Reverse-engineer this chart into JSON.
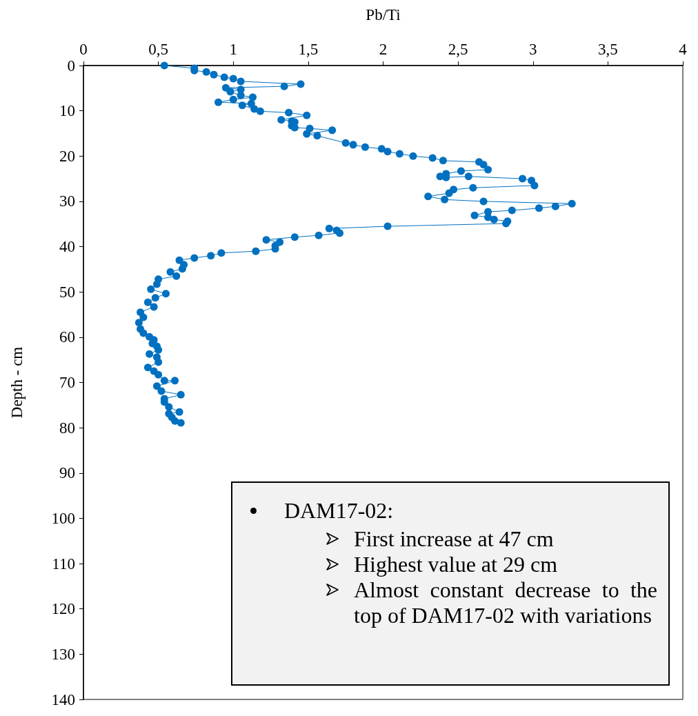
{
  "chart_data": {
    "type": "line",
    "xlabel": "Pb/Ti",
    "ylabel": "Depth - cm",
    "x": [
      0.54,
      0.74,
      0.74,
      0.82,
      0.87,
      0.94,
      1.0,
      1.05,
      1.45,
      1.34,
      0.95,
      1.05,
      0.98,
      1.05,
      1.13,
      1.0,
      0.9,
      1.12,
      1.06,
      1.14,
      1.18,
      1.37,
      1.49,
      1.32,
      1.39,
      1.41,
      1.39,
      1.41,
      1.51,
      1.66,
      1.49,
      1.56,
      1.75,
      1.8,
      1.88,
      1.99,
      2.03,
      2.11,
      2.2,
      2.33,
      2.4,
      2.64,
      2.67,
      2.7,
      2.52,
      2.42,
      2.38,
      2.42,
      2.57,
      2.93,
      2.99,
      3.01,
      2.6,
      2.47,
      2.44,
      2.3,
      2.41,
      2.67,
      3.26,
      3.15,
      3.04,
      2.86,
      2.7,
      2.61,
      2.7,
      2.74,
      2.83,
      2.82,
      2.03,
      1.64,
      1.69,
      1.71,
      1.57,
      1.41,
      1.22,
      1.31,
      1.28,
      1.28,
      1.15,
      0.92,
      0.85,
      0.74,
      0.64,
      0.67,
      0.66,
      0.58,
      0.62,
      0.5,
      0.49,
      0.45,
      0.55,
      0.48,
      0.43,
      0.47,
      0.38,
      0.4,
      0.37,
      0.38,
      0.4,
      0.44,
      0.47,
      0.46,
      0.49,
      0.5,
      0.44,
      0.49,
      0.5,
      0.43,
      0.47,
      0.5,
      0.54,
      0.61,
      0.49,
      0.52,
      0.65,
      0.54,
      0.54,
      0.57,
      0.64,
      0.57,
      0.59,
      0.61,
      0.65
    ],
    "values": [
      0,
      0.6,
      1.1,
      1.4,
      2.0,
      2.6,
      2.9,
      3.5,
      4.1,
      4.6,
      4.9,
      5.3,
      5.8,
      6.6,
      7.0,
      7.5,
      8.1,
      8.4,
      8.8,
      9.6,
      10.1,
      10.4,
      11.0,
      12.0,
      12.3,
      12.5,
      13.3,
      13.7,
      13.9,
      14.3,
      15.1,
      15.5,
      17.1,
      17.5,
      18.0,
      18.4,
      19.0,
      19.5,
      20.0,
      20.4,
      21.0,
      21.3,
      21.9,
      23.0,
      23.3,
      23.9,
      24.5,
      24.7,
      24.5,
      25.0,
      25.4,
      26.5,
      27.0,
      27.4,
      28.2,
      28.9,
      29.6,
      30.0,
      30.5,
      31.1,
      31.5,
      32.0,
      32.3,
      33.1,
      33.5,
      34.0,
      34.4,
      34.9,
      35.5,
      36.0,
      36.4,
      37.0,
      37.5,
      37.9,
      38.5,
      39.0,
      39.8,
      40.5,
      41.0,
      41.4,
      42.0,
      42.5,
      43.0,
      44.0,
      44.9,
      45.6,
      46.5,
      47.2,
      48.3,
      49.4,
      50.4,
      51.3,
      52.3,
      53.3,
      54.5,
      55.6,
      56.8,
      58.2,
      59.1,
      59.9,
      60.6,
      61.4,
      62.0,
      62.8,
      63.7,
      64.4,
      65.5,
      66.7,
      67.5,
      68.3,
      69.6,
      69.6,
      70.8,
      71.9,
      72.7,
      73.6,
      74.3,
      75.4,
      76.5,
      76.9,
      77.7,
      78.5,
      78.9
    ],
    "color": "#0070c0",
    "marker": "circle",
    "line_style": "solid",
    "grid": false,
    "xlim": [
      0,
      4
    ],
    "xticks": [
      0,
      {
        "value": 0.5,
        "label": "0,5"
      },
      1,
      {
        "value": 1.5,
        "label": "1,5"
      },
      2,
      {
        "value": 2.5,
        "label": "2,5"
      },
      3,
      {
        "value": 3.5,
        "label": "3,5"
      },
      4
    ],
    "ylim": [
      140,
      0
    ],
    "yticks": [
      0,
      10,
      20,
      30,
      40,
      50,
      60,
      70,
      80,
      90,
      100,
      110,
      120,
      130,
      140
    ],
    "annotations": [
      "DAM17-02:",
      "First increase at 47 cm",
      "Highest value at 29 cm",
      "Almost constant decrease to the top of DAM17-02 with variations"
    ]
  }
}
